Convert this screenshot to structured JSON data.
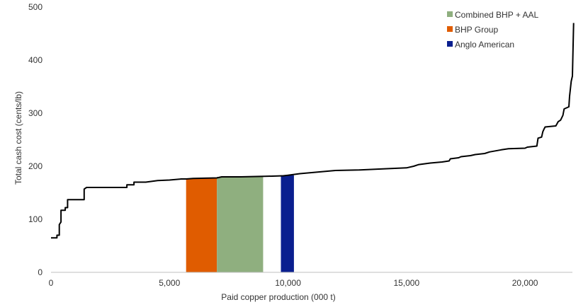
{
  "chart_data": {
    "type": "line",
    "xlabel": "Paid copper production (000 t)",
    "ylabel": "Total cash cost (cents/lb)",
    "xlim": [
      0,
      22000
    ],
    "ylim": [
      0,
      500
    ],
    "x_ticks": [
      {
        "value": 0,
        "label": "0"
      },
      {
        "value": 5000,
        "label": "5,000"
      },
      {
        "value": 10000,
        "label": "10,000"
      },
      {
        "value": 15000,
        "label": "15,000"
      },
      {
        "value": 20000,
        "label": "20,000"
      }
    ],
    "y_ticks": [
      {
        "value": 0,
        "label": "0"
      },
      {
        "value": 100,
        "label": "100"
      },
      {
        "value": 200,
        "label": "200"
      },
      {
        "value": 300,
        "label": "300"
      },
      {
        "value": 400,
        "label": "400"
      },
      {
        "value": 500,
        "label": "500"
      }
    ],
    "grid": false,
    "legend_position": "top-right",
    "series": [
      {
        "kind": "line",
        "color": "#000000",
        "points": [
          [
            0,
            65
          ],
          [
            250,
            65
          ],
          [
            250,
            70
          ],
          [
            350,
            70
          ],
          [
            350,
            90
          ],
          [
            420,
            95
          ],
          [
            420,
            117
          ],
          [
            600,
            117
          ],
          [
            600,
            122
          ],
          [
            700,
            122
          ],
          [
            700,
            137
          ],
          [
            1400,
            137
          ],
          [
            1400,
            157
          ],
          [
            1500,
            160
          ],
          [
            3200,
            160
          ],
          [
            3200,
            165
          ],
          [
            3500,
            165
          ],
          [
            3500,
            170
          ],
          [
            4000,
            170
          ],
          [
            4500,
            173
          ],
          [
            5000,
            174
          ],
          [
            5500,
            176
          ],
          [
            5700,
            176
          ],
          [
            6000,
            177
          ],
          [
            7000,
            178
          ],
          [
            7200,
            180
          ],
          [
            8000,
            180
          ],
          [
            9000,
            181
          ],
          [
            9800,
            182
          ],
          [
            10000,
            183
          ],
          [
            10500,
            186
          ],
          [
            11000,
            188
          ],
          [
            11500,
            190
          ],
          [
            12000,
            192
          ],
          [
            13000,
            193
          ],
          [
            14000,
            195
          ],
          [
            15000,
            197
          ],
          [
            15300,
            200
          ],
          [
            15500,
            203
          ],
          [
            16000,
            206
          ],
          [
            16500,
            208
          ],
          [
            16800,
            210
          ],
          [
            16850,
            214
          ],
          [
            17200,
            216
          ],
          [
            17300,
            218
          ],
          [
            17700,
            220
          ],
          [
            17900,
            222
          ],
          [
            18300,
            224
          ],
          [
            18500,
            227
          ],
          [
            19000,
            231
          ],
          [
            19300,
            233
          ],
          [
            20000,
            234
          ],
          [
            20100,
            236
          ],
          [
            20500,
            238
          ],
          [
            20550,
            253
          ],
          [
            20700,
            255
          ],
          [
            20750,
            265
          ],
          [
            20800,
            270
          ],
          [
            20850,
            274
          ],
          [
            21300,
            276
          ],
          [
            21400,
            284
          ],
          [
            21500,
            287
          ],
          [
            21600,
            296
          ],
          [
            21650,
            308
          ],
          [
            21850,
            312
          ],
          [
            21880,
            332
          ],
          [
            21950,
            360
          ],
          [
            22000,
            370
          ],
          [
            22050,
            470
          ]
        ]
      }
    ],
    "bars": [
      {
        "name": "BHP Group",
        "color": "#e05c00",
        "x0": 5700,
        "x1": 7000,
        "y": 177
      },
      {
        "name": "Combined BHP + AAL",
        "color": "#8faf7f",
        "x0": 7000,
        "x1": 8950,
        "y": 180
      },
      {
        "name": "Anglo American",
        "color": "#0a1f8f",
        "x0": 9700,
        "x1": 10250,
        "y": 183
      }
    ],
    "legend": [
      {
        "label": "Combined BHP + AAL",
        "color": "#8faf7f"
      },
      {
        "label": "BHP Group",
        "color": "#e05c00"
      },
      {
        "label": "Anglo American",
        "color": "#0a1f8f"
      }
    ]
  }
}
